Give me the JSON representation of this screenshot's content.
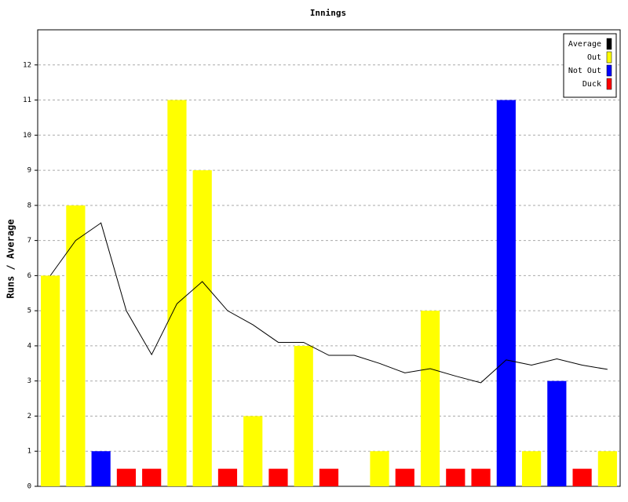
{
  "chart_data": {
    "type": "bar",
    "title": "Innings",
    "y_label": "Runs / Average",
    "ylim": [
      0,
      13
    ],
    "yticks": [
      0,
      1,
      2,
      3,
      4,
      5,
      6,
      7,
      8,
      9,
      10,
      11,
      12
    ],
    "grid": true,
    "legend": "top-right",
    "series": [
      {
        "name": "Average",
        "color": "#000000",
        "type": "line",
        "values": [
          6,
          7,
          7.5,
          5,
          3.75,
          5.2,
          5.83,
          5,
          4.6,
          4.1,
          4.1,
          3.73,
          3.73,
          3.5,
          3.23,
          3.35,
          3.14,
          2.95,
          3.6,
          3.45,
          3.63,
          3.45,
          3.33
        ]
      },
      {
        "name": "Out",
        "color": "#ffff00",
        "type": "bar",
        "values": [
          6,
          8,
          null,
          null,
          null,
          11,
          9,
          null,
          2,
          null,
          4,
          null,
          null,
          1,
          null,
          5,
          null,
          null,
          null,
          1,
          null,
          null,
          1
        ]
      },
      {
        "name": "Not Out",
        "color": "#0000ff",
        "type": "bar",
        "values": [
          null,
          null,
          1,
          null,
          null,
          null,
          null,
          null,
          null,
          null,
          null,
          null,
          null,
          null,
          null,
          null,
          null,
          null,
          11,
          null,
          3,
          null,
          null
        ]
      },
      {
        "name": "Duck",
        "color": "#ff0000",
        "type": "bar",
        "values": [
          null,
          null,
          null,
          0.5,
          0.5,
          null,
          null,
          0.5,
          null,
          0.5,
          null,
          0.5,
          null,
          null,
          0.5,
          null,
          0.5,
          0.5,
          null,
          null,
          null,
          0.5,
          null
        ]
      }
    ]
  }
}
